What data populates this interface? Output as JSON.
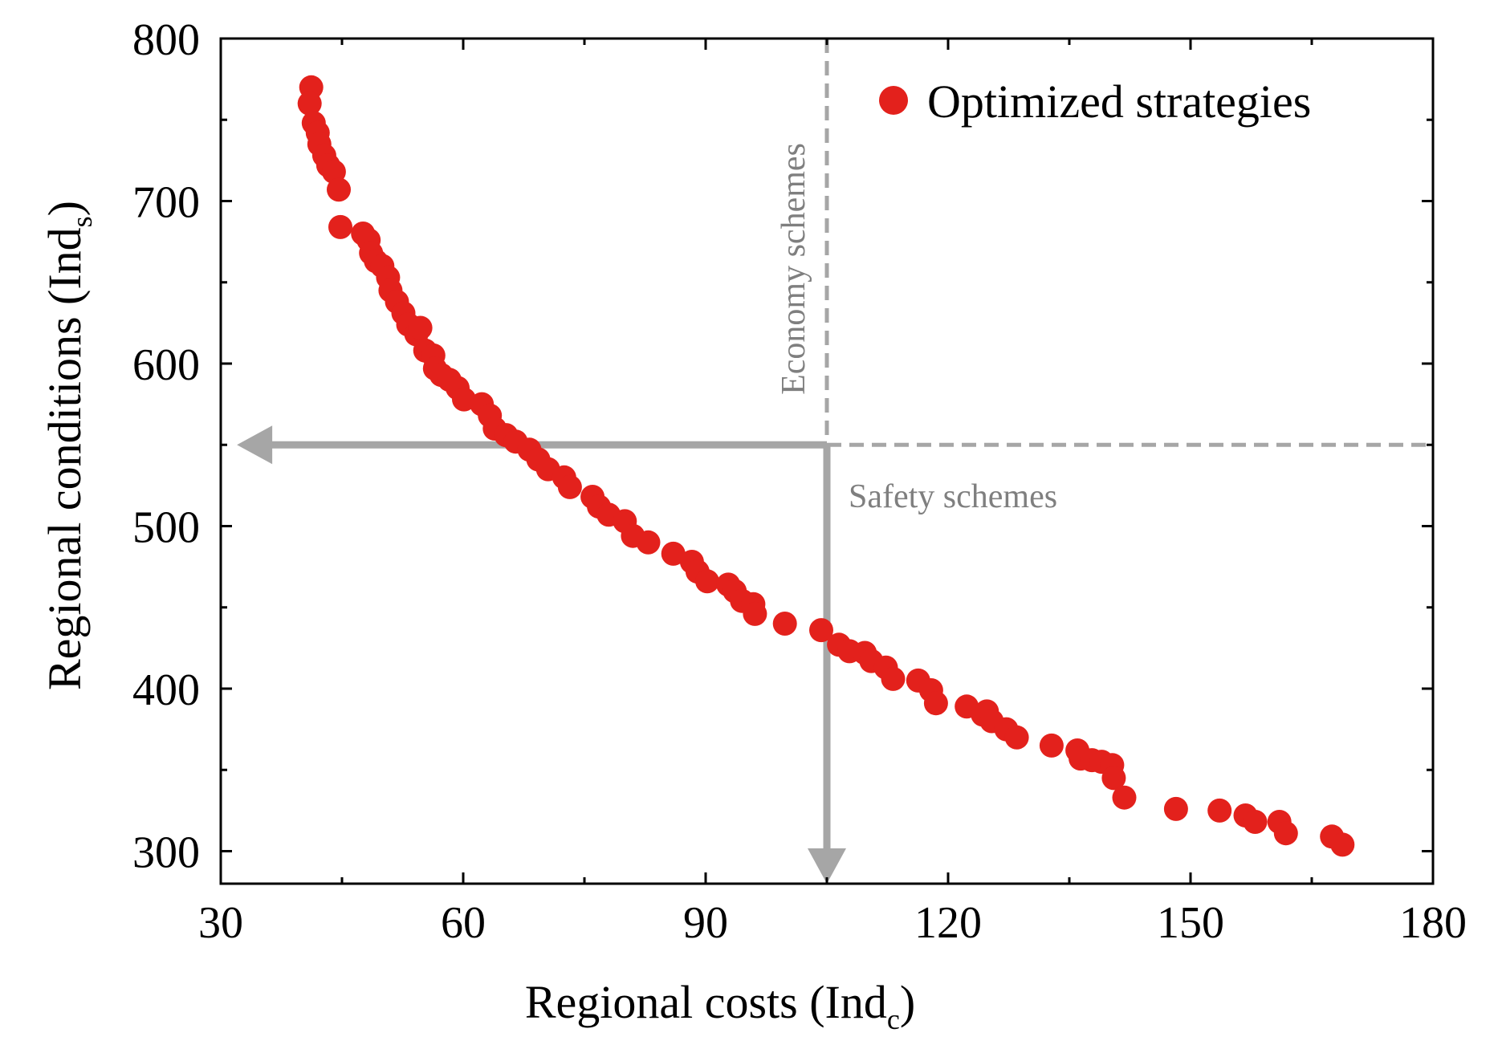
{
  "chart_data": {
    "type": "scatter",
    "title": "",
    "xlabel": "Regional costs (Ind",
    "xlabel_sub": "c",
    "xlabel_close": ")",
    "ylabel": "Regional conditions (Ind",
    "ylabel_sub": "s",
    "ylabel_close": ")",
    "xlim": [
      30,
      180
    ],
    "ylim": [
      280,
      800
    ],
    "xticks": [
      30,
      60,
      90,
      120,
      150,
      180
    ],
    "yticks": [
      300,
      400,
      500,
      600,
      700,
      800
    ],
    "grid": false,
    "legend_position": "top-right",
    "colors": {
      "points": "#e3211c",
      "annotation": "#a6a6a6",
      "annotation_text": "#7f7f7f",
      "axis": "#000000"
    },
    "series": [
      {
        "name": "Optimized strategies",
        "points": [
          [
            41.2,
            770
          ],
          [
            41.0,
            760
          ],
          [
            41.5,
            748
          ],
          [
            42.0,
            742
          ],
          [
            42.2,
            735
          ],
          [
            42.8,
            728
          ],
          [
            43.3,
            722
          ],
          [
            44.0,
            718
          ],
          [
            44.6,
            707
          ],
          [
            44.8,
            684
          ],
          [
            47.6,
            680
          ],
          [
            48.3,
            676
          ],
          [
            48.6,
            668
          ],
          [
            49.2,
            663
          ],
          [
            50.0,
            660
          ],
          [
            50.7,
            653
          ],
          [
            51.0,
            645
          ],
          [
            51.8,
            638
          ],
          [
            52.6,
            631
          ],
          [
            53.2,
            624
          ],
          [
            54.2,
            618
          ],
          [
            54.7,
            622
          ],
          [
            55.3,
            608
          ],
          [
            56.3,
            605
          ],
          [
            56.5,
            597
          ],
          [
            57.3,
            593
          ],
          [
            58.3,
            590
          ],
          [
            59.3,
            585
          ],
          [
            60.1,
            578
          ],
          [
            62.3,
            575
          ],
          [
            63.3,
            568
          ],
          [
            63.9,
            560
          ],
          [
            65.3,
            556
          ],
          [
            66.5,
            552
          ],
          [
            68.2,
            547
          ],
          [
            69.3,
            541
          ],
          [
            70.5,
            535
          ],
          [
            72.5,
            530
          ],
          [
            73.2,
            524
          ],
          [
            76.0,
            518
          ],
          [
            76.8,
            512
          ],
          [
            78.0,
            507
          ],
          [
            80.0,
            503
          ],
          [
            81.0,
            494
          ],
          [
            82.9,
            490
          ],
          [
            86.0,
            483
          ],
          [
            88.3,
            478
          ],
          [
            89.0,
            472
          ],
          [
            90.2,
            466
          ],
          [
            92.8,
            464
          ],
          [
            93.6,
            460
          ],
          [
            94.5,
            454
          ],
          [
            95.9,
            452
          ],
          [
            96.1,
            446
          ],
          [
            99.8,
            440
          ],
          [
            104.3,
            436
          ],
          [
            106.5,
            427
          ],
          [
            107.8,
            423
          ],
          [
            109.7,
            422
          ],
          [
            110.5,
            417
          ],
          [
            112.3,
            413
          ],
          [
            113.2,
            406
          ],
          [
            116.3,
            405
          ],
          [
            117.9,
            399
          ],
          [
            118.5,
            391
          ],
          [
            122.3,
            389
          ],
          [
            124.3,
            384
          ],
          [
            124.8,
            386
          ],
          [
            125.4,
            380
          ],
          [
            127.2,
            375
          ],
          [
            128.5,
            370
          ],
          [
            132.8,
            365
          ],
          [
            136.0,
            362
          ],
          [
            136.4,
            357
          ],
          [
            137.8,
            356
          ],
          [
            139.0,
            355
          ],
          [
            140.3,
            353
          ],
          [
            140.5,
            345
          ],
          [
            141.8,
            333
          ],
          [
            148.2,
            326
          ],
          [
            153.6,
            325
          ],
          [
            156.8,
            322
          ],
          [
            158.0,
            318
          ],
          [
            161.0,
            318
          ],
          [
            161.8,
            311
          ],
          [
            167.5,
            309
          ],
          [
            168.8,
            304
          ]
        ]
      }
    ],
    "annotations": {
      "vertical_line_x": 105,
      "horizontal_line_y": 550,
      "vertical_label": "Economy schemes",
      "horizontal_label": "Safety schemes",
      "arrow_left_to_x": 32,
      "arrow_down_to_y": 280
    }
  }
}
